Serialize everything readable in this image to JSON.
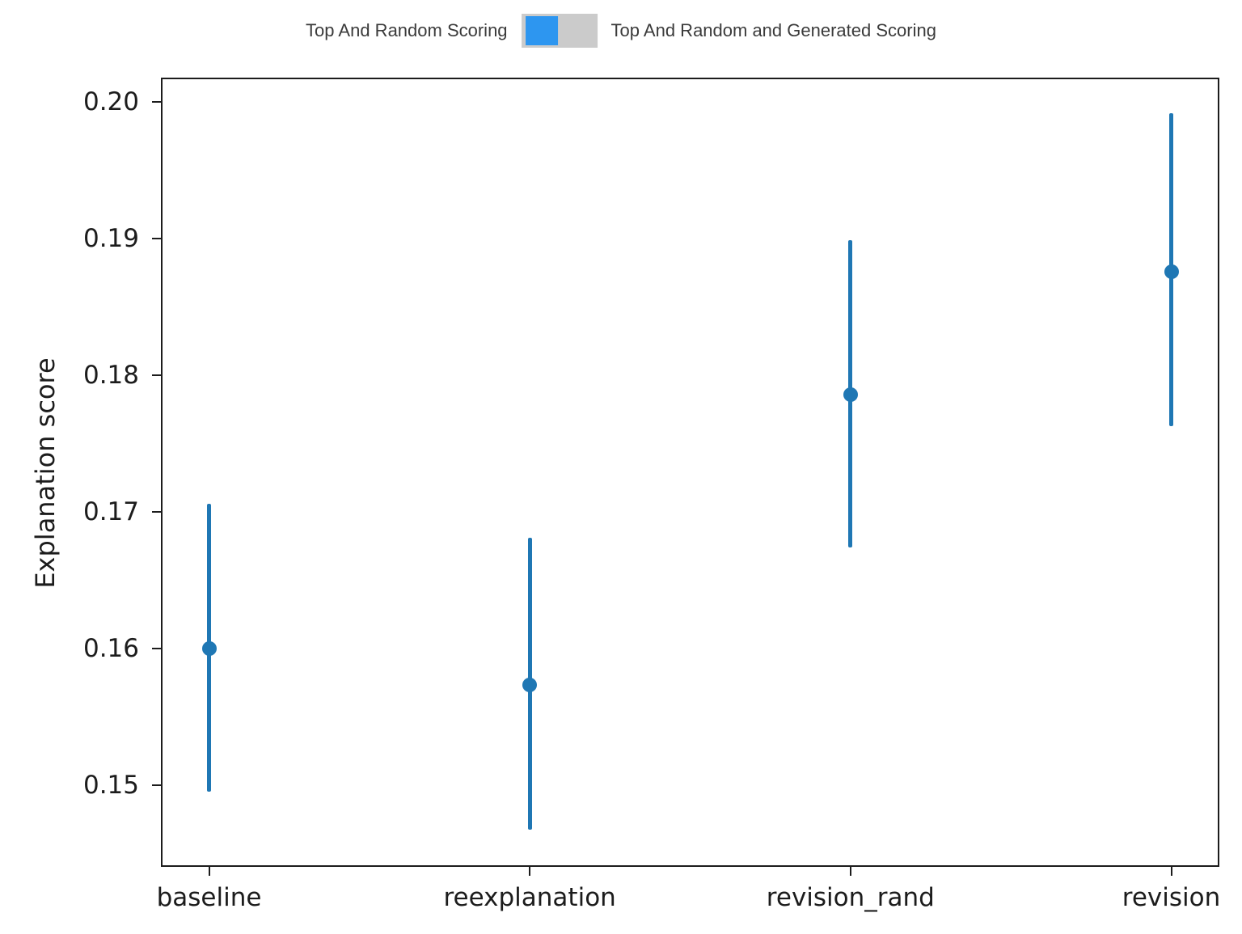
{
  "legend": {
    "left_label": "Top And Random Scoring",
    "right_label": "Top And Random and Generated Scoring",
    "toggle_track_color": "#cbcbcb",
    "toggle_on_color": "#2d96f0",
    "selected": "Top And Random Scoring"
  },
  "chart_data": {
    "type": "scatter",
    "title": "",
    "xlabel": "",
    "ylabel": "Explanation score",
    "categories": [
      "baseline",
      "reexplanation",
      "revision_rand",
      "revision"
    ],
    "series": [
      {
        "name": "Top And Random Scoring",
        "values": [
          0.16,
          0.1573,
          0.1786,
          0.1876
        ],
        "error_upper": [
          0.1706,
          0.1681,
          0.1899,
          0.1992
        ],
        "error_lower": [
          0.1495,
          0.1467,
          0.1674,
          0.1763
        ]
      }
    ],
    "yticks": [
      0.2,
      0.19,
      0.18,
      0.17,
      0.16,
      0.15
    ],
    "ylim": [
      0.144,
      0.2018
    ],
    "grid": false,
    "legend_position": "top-center",
    "marker_color": "#1f77b4",
    "marker_style": "circle-with-vertical-error-bar"
  }
}
